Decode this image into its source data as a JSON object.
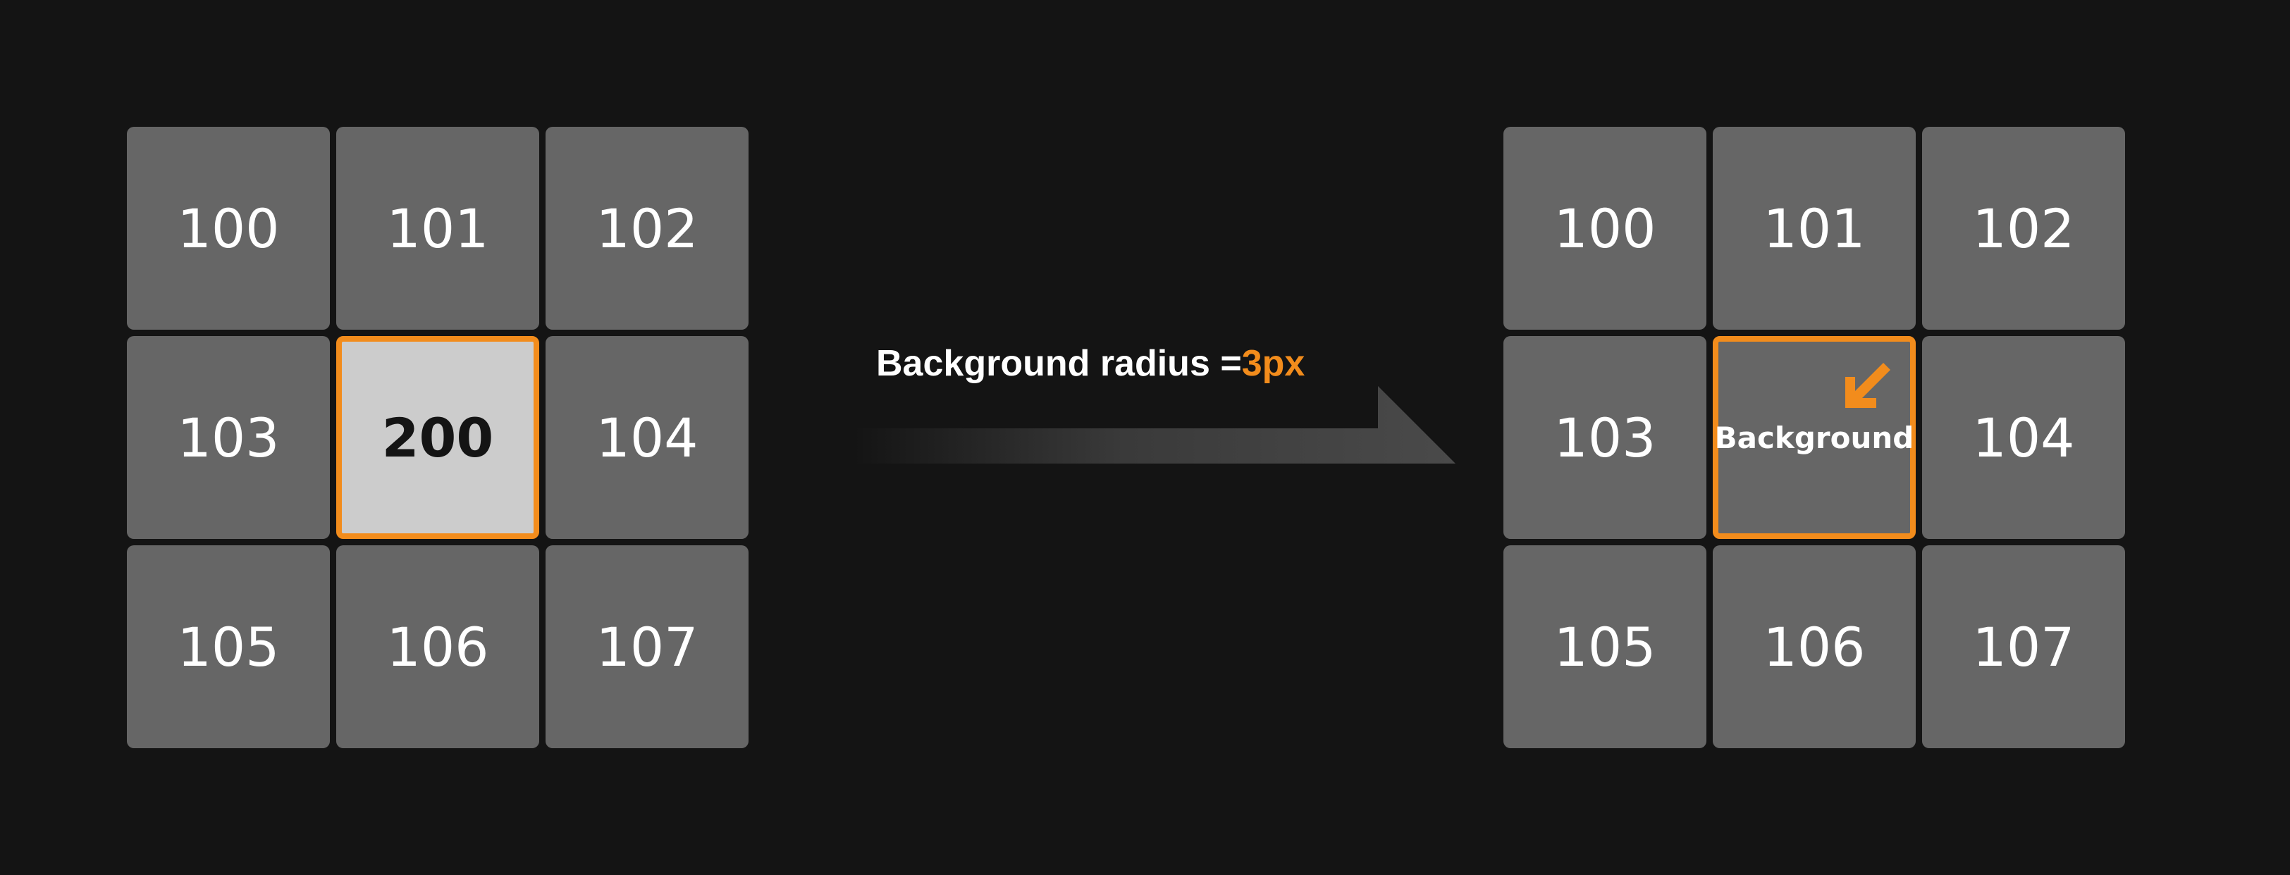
{
  "before_grid": {
    "cells": [
      "100",
      "101",
      "102",
      "103",
      "200",
      "104",
      "105",
      "106",
      "107"
    ]
  },
  "transition": {
    "label_prefix": "Background radius =",
    "label_value": "3px"
  },
  "after_grid": {
    "cells": [
      "100",
      "101",
      "102",
      "103",
      "Background",
      "104",
      "105",
      "106",
      "107"
    ]
  },
  "colors": {
    "accent": "#f28c1c",
    "background": "#141414",
    "cell": "#666666",
    "selected_cell": "#cccccc"
  },
  "icons": {
    "corner_arrow": "arrow-down-left-icon",
    "transition_arrow": "arrow-right-icon"
  }
}
